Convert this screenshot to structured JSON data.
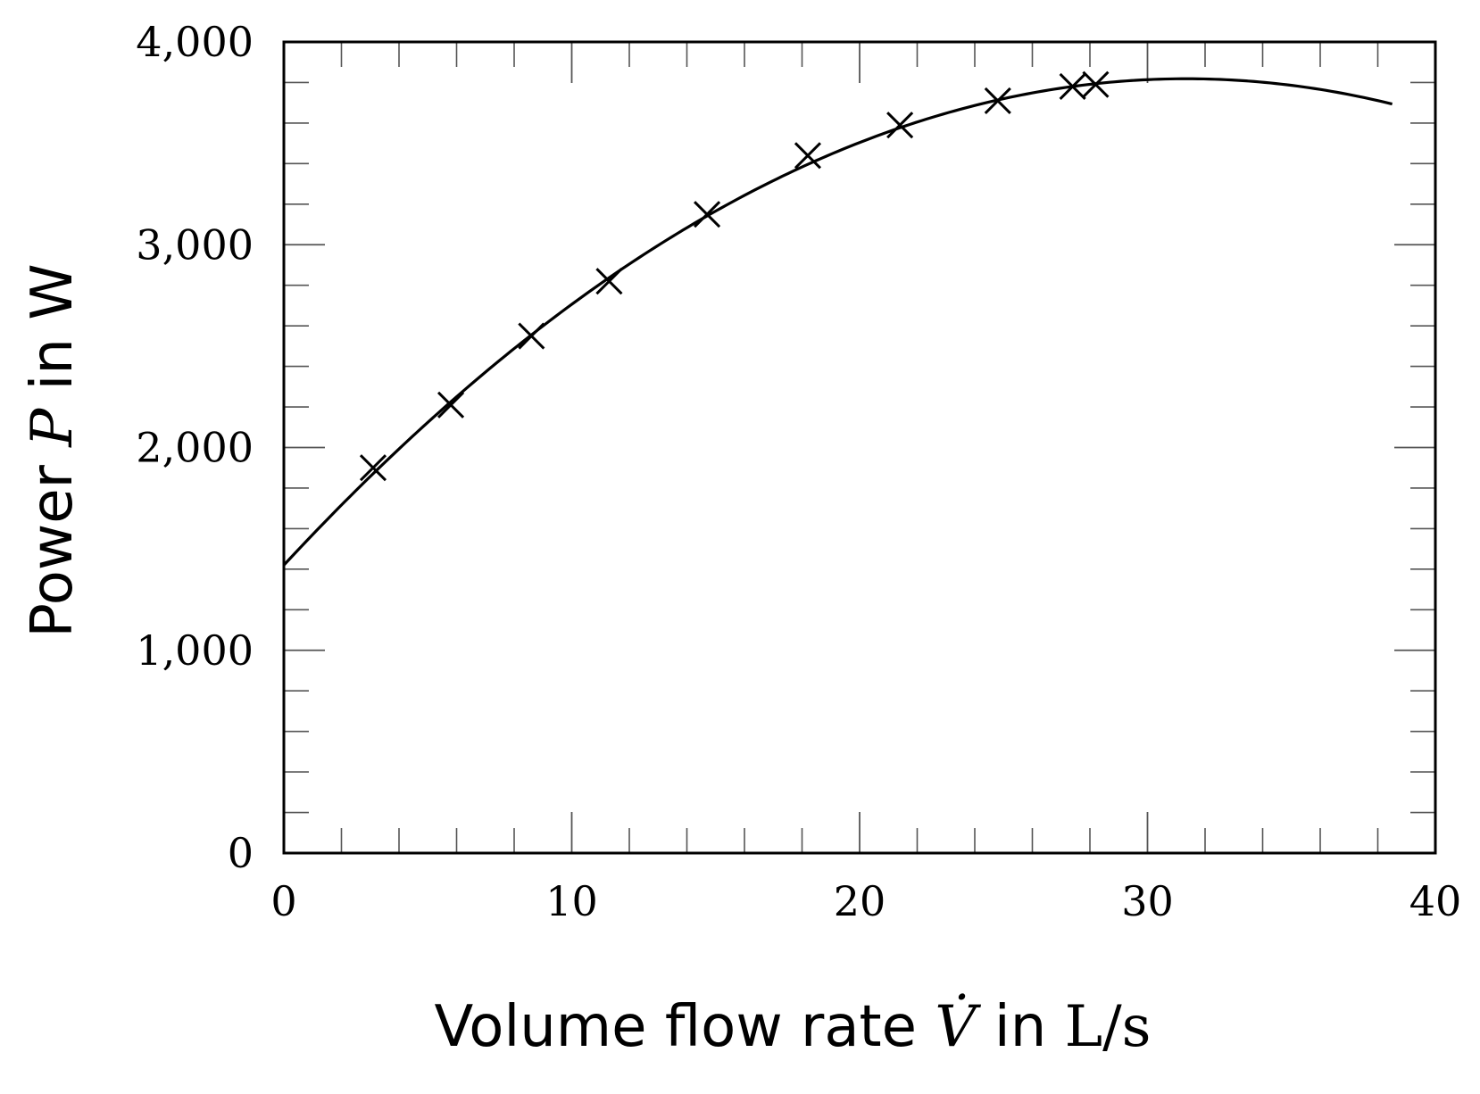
{
  "chart_data": {
    "type": "scatter",
    "xlabel": "Volume flow rate V̇ in L/s",
    "xlabel_parts": {
      "prefix": "Volume flow rate ",
      "symbol": "V̇",
      "mid": " in ",
      "unit": "L/s"
    },
    "ylabel": "Power P in W",
    "ylabel_parts": {
      "prefix": "Power ",
      "symbol": "P",
      "suffix": " in W"
    },
    "xlim": [
      0,
      40
    ],
    "ylim": [
      0,
      4000
    ],
    "x_ticks": [
      0,
      10,
      20,
      30,
      40
    ],
    "x_tick_labels": [
      "0",
      "10",
      "20",
      "30",
      "40"
    ],
    "y_ticks": [
      0,
      1000,
      2000,
      3000,
      4000
    ],
    "y_tick_labels": [
      "0",
      "1,000",
      "2,000",
      "3,000",
      "4,000"
    ],
    "x_minor_step": 2,
    "y_minor_step": 200,
    "grid": false,
    "series": [
      {
        "kind": "markers",
        "marker": "x",
        "x": [
          3.1,
          5.8,
          8.6,
          11.3,
          14.7,
          18.2,
          21.4,
          24.8,
          27.4,
          28.2
        ],
        "y": [
          1900,
          2210,
          2550,
          2820,
          3150,
          3440,
          3590,
          3710,
          3780,
          3790
        ]
      },
      {
        "kind": "fit-line",
        "x_range": [
          0,
          38.5
        ],
        "coefficients": [
          1420,
          153,
          -2.44
        ]
      }
    ],
    "colors": {
      "axis": "#000000",
      "marker": "#000000",
      "line": "#000000"
    }
  }
}
